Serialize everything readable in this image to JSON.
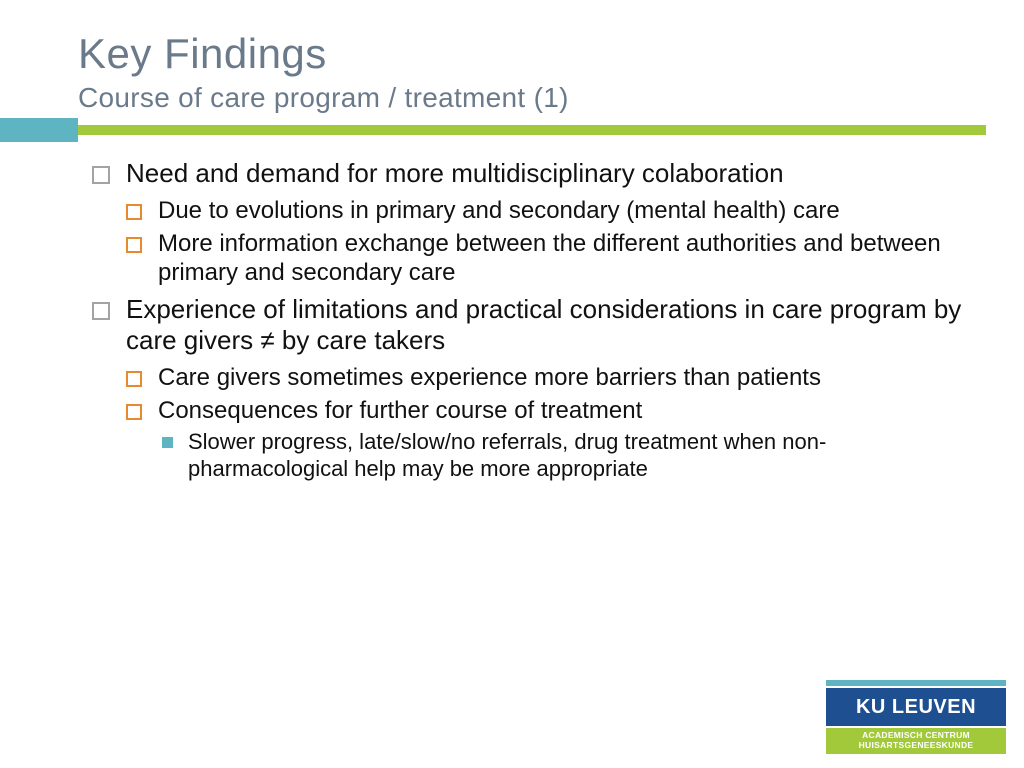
{
  "title": "Key Findings",
  "subtitle": "Course of care program / treatment (1)",
  "colors": {
    "title_text": "#6a7a8a",
    "accent_teal": "#5fb4c1",
    "accent_green": "#a2c93a",
    "bullet_lvl1_border": "#a3a3a3",
    "bullet_lvl2_border": "#e8892f",
    "bullet_lvl3_fill": "#5fb4c1",
    "body_text": "#111111",
    "background": "#ffffff",
    "logo_blue": "#1d4f91"
  },
  "bullets": [
    {
      "text": "Need and demand for more multidisciplinary colaboration",
      "children": [
        {
          "text": "Due to evolutions in primary and secondary (mental health) care"
        },
        {
          "text": "More information exchange between the different authorities and between primary and secondary care"
        }
      ]
    },
    {
      "text": "Experience of limitations and practical considerations in care program by care givers ≠ by care takers",
      "children": [
        {
          "text": "Care givers sometimes experience more barriers than patients"
        },
        {
          "text": "Consequences for further course of treatment",
          "children": [
            {
              "text": "Slower progress, late/slow/no referrals, drug treatment when non-pharmacological help may be more appropriate"
            }
          ]
        }
      ]
    }
  ],
  "logo": {
    "name": "KU LEUVEN",
    "sub1": "ACADEMISCH CENTRUM",
    "sub2": "HUISARTSGENEESKUNDE"
  }
}
